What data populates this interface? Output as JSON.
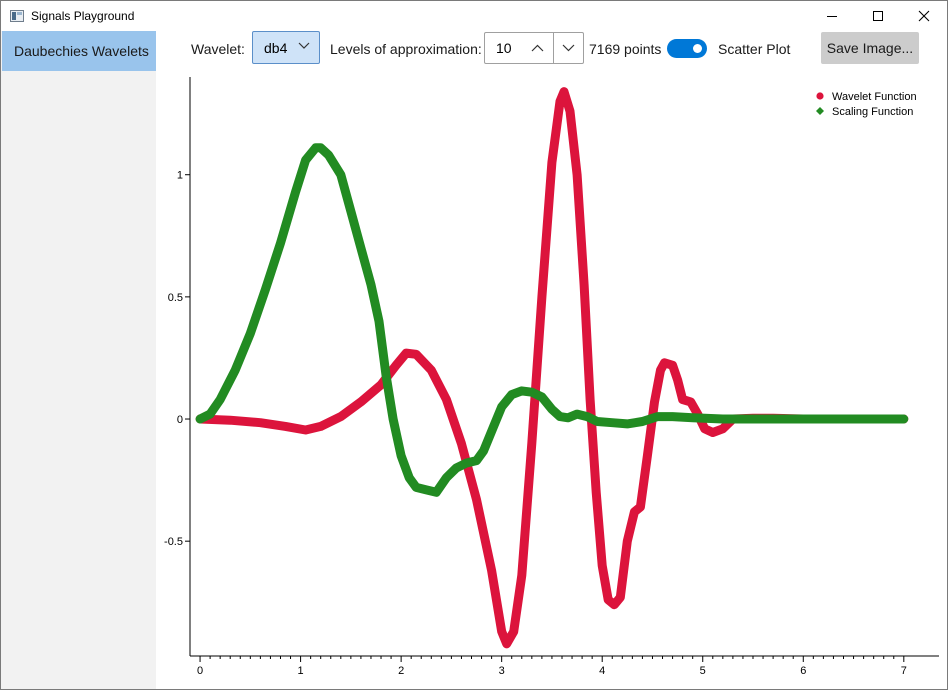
{
  "window": {
    "title": "Signals Playground",
    "controls": {
      "minimize": "minimize",
      "maximize": "maximize",
      "close": "close"
    }
  },
  "sidebar": {
    "items": [
      {
        "label": "Daubechies Wavelets",
        "selected": true
      }
    ]
  },
  "toolbar": {
    "wavelet_label": "Wavelet:",
    "wavelet_value": "db4",
    "levels_label": "Levels of approximation:",
    "levels_value": "10",
    "points_text": "7169 points",
    "scatter_toggle_on": true,
    "scatter_label": "Scatter Plot",
    "save_label": "Save Image..."
  },
  "colors": {
    "accent": "#0078d7",
    "selected_item": "#99c4ec",
    "wavelet_series": "#dc143c",
    "scaling_series": "#228b22"
  },
  "chart_data": {
    "type": "scatter",
    "xlim": [
      -0.1,
      7.35
    ],
    "ylim": [
      -0.97,
      1.4
    ],
    "x_ticks": [
      0,
      1,
      2,
      3,
      4,
      5,
      6,
      7
    ],
    "y_ticks": [
      -0.5,
      0,
      0.5,
      1
    ],
    "x_tick_labels": [
      "0",
      "1",
      "2",
      "3",
      "4",
      "5",
      "6",
      "7"
    ],
    "y_tick_labels": [
      "-0.5",
      "0",
      "0.5",
      "1"
    ],
    "legend_position": "top-right",
    "series": [
      {
        "name": "Wavelet Function",
        "color": "#dc143c",
        "marker": "circle",
        "points": [
          [
            0,
            0
          ],
          [
            0.3,
            -0.005
          ],
          [
            0.6,
            -0.015
          ],
          [
            0.85,
            -0.03
          ],
          [
            1.05,
            -0.045
          ],
          [
            1.2,
            -0.03
          ],
          [
            1.4,
            0.01
          ],
          [
            1.6,
            0.07
          ],
          [
            1.8,
            0.14
          ],
          [
            1.95,
            0.22
          ],
          [
            2.05,
            0.27
          ],
          [
            2.15,
            0.265
          ],
          [
            2.3,
            0.2
          ],
          [
            2.45,
            0.08
          ],
          [
            2.6,
            -0.1
          ],
          [
            2.75,
            -0.33
          ],
          [
            2.9,
            -0.62
          ],
          [
            3.0,
            -0.87
          ],
          [
            3.05,
            -0.92
          ],
          [
            3.12,
            -0.87
          ],
          [
            3.2,
            -0.64
          ],
          [
            3.3,
            -0.1
          ],
          [
            3.4,
            0.5
          ],
          [
            3.5,
            1.05
          ],
          [
            3.58,
            1.3
          ],
          [
            3.62,
            1.34
          ],
          [
            3.68,
            1.26
          ],
          [
            3.75,
            1.0
          ],
          [
            3.82,
            0.55
          ],
          [
            3.88,
            0.08
          ],
          [
            3.94,
            -0.3
          ],
          [
            4.0,
            -0.6
          ],
          [
            4.06,
            -0.74
          ],
          [
            4.12,
            -0.76
          ],
          [
            4.18,
            -0.73
          ],
          [
            4.25,
            -0.5
          ],
          [
            4.32,
            -0.38
          ],
          [
            4.38,
            -0.36
          ],
          [
            4.45,
            -0.15
          ],
          [
            4.52,
            0.07
          ],
          [
            4.58,
            0.2
          ],
          [
            4.62,
            0.23
          ],
          [
            4.7,
            0.22
          ],
          [
            4.75,
            0.16
          ],
          [
            4.8,
            0.08
          ],
          [
            4.88,
            0.07
          ],
          [
            4.95,
            0.02
          ],
          [
            5.02,
            -0.04
          ],
          [
            5.1,
            -0.055
          ],
          [
            5.2,
            -0.04
          ],
          [
            5.3,
            0.0
          ],
          [
            5.5,
            0.003
          ],
          [
            5.7,
            0.003
          ],
          [
            6.0,
            0.0
          ],
          [
            6.5,
            0.0
          ],
          [
            7.0,
            0.0
          ]
        ]
      },
      {
        "name": "Scaling Function",
        "color": "#228b22",
        "marker": "diamond",
        "points": [
          [
            0,
            0
          ],
          [
            0.1,
            0.02
          ],
          [
            0.2,
            0.08
          ],
          [
            0.35,
            0.2
          ],
          [
            0.5,
            0.35
          ],
          [
            0.65,
            0.53
          ],
          [
            0.8,
            0.72
          ],
          [
            0.95,
            0.93
          ],
          [
            1.05,
            1.06
          ],
          [
            1.15,
            1.11
          ],
          [
            1.2,
            1.11
          ],
          [
            1.28,
            1.08
          ],
          [
            1.4,
            1.0
          ],
          [
            1.5,
            0.85
          ],
          [
            1.6,
            0.7
          ],
          [
            1.7,
            0.55
          ],
          [
            1.78,
            0.4
          ],
          [
            1.85,
            0.18
          ],
          [
            1.92,
            0.0
          ],
          [
            2.0,
            -0.15
          ],
          [
            2.08,
            -0.24
          ],
          [
            2.15,
            -0.28
          ],
          [
            2.25,
            -0.29
          ],
          [
            2.35,
            -0.3
          ],
          [
            2.45,
            -0.24
          ],
          [
            2.55,
            -0.2
          ],
          [
            2.65,
            -0.18
          ],
          [
            2.75,
            -0.17
          ],
          [
            2.82,
            -0.13
          ],
          [
            2.92,
            -0.03
          ],
          [
            3.0,
            0.05
          ],
          [
            3.1,
            0.1
          ],
          [
            3.2,
            0.115
          ],
          [
            3.3,
            0.11
          ],
          [
            3.4,
            0.09
          ],
          [
            3.5,
            0.04
          ],
          [
            3.58,
            0.01
          ],
          [
            3.66,
            0.005
          ],
          [
            3.75,
            0.02
          ],
          [
            3.85,
            0.01
          ],
          [
            3.95,
            -0.01
          ],
          [
            4.1,
            -0.015
          ],
          [
            4.25,
            -0.02
          ],
          [
            4.4,
            -0.01
          ],
          [
            4.55,
            0.01
          ],
          [
            4.7,
            0.01
          ],
          [
            4.9,
            0.005
          ],
          [
            5.2,
            0.0
          ],
          [
            6.0,
            0.0
          ],
          [
            7.0,
            0.0
          ]
        ]
      }
    ]
  }
}
